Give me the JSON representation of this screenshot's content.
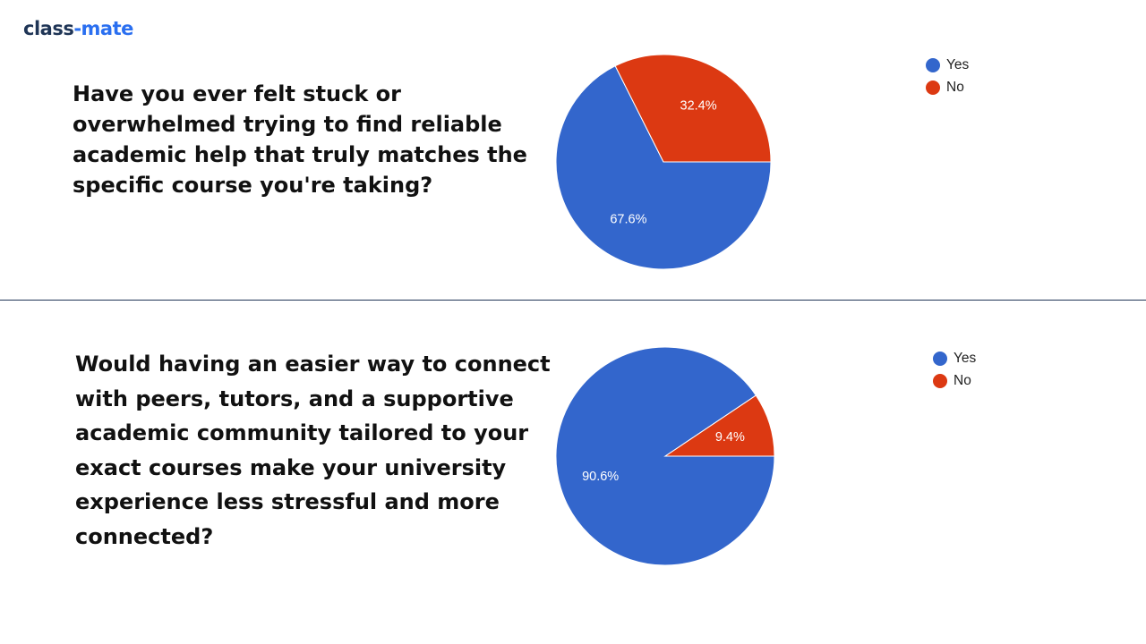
{
  "brand": {
    "name_part_a": "class",
    "name_sep": "-",
    "name_part_b": "mate"
  },
  "colors": {
    "yes": "#3366cc",
    "no": "#dc3912",
    "divider": "#1f3556",
    "brand_dark": "#1f3556",
    "brand_blue": "#2a6ff0"
  },
  "questions": [
    {
      "text": "Have you ever felt stuck or overwhelmed trying to find reliable academic help that truly matches the specific course you're taking?"
    },
    {
      "text": "Would having an easier way to connect with peers, tutors, and a supportive academic community tailored to your exact courses make your university experience less stressful and more connected?"
    }
  ],
  "chart_data": [
    {
      "type": "pie",
      "title": "",
      "categories": [
        "Yes",
        "No"
      ],
      "values": [
        67.6,
        32.4
      ],
      "labels": [
        "67.6%",
        "32.4%"
      ],
      "colors": [
        "#3366cc",
        "#dc3912"
      ],
      "legend": {
        "position": "right",
        "entries": [
          "Yes",
          "No"
        ]
      }
    },
    {
      "type": "pie",
      "title": "",
      "categories": [
        "Yes",
        "No"
      ],
      "values": [
        90.6,
        9.4
      ],
      "labels": [
        "90.6%",
        "9.4%"
      ],
      "colors": [
        "#3366cc",
        "#dc3912"
      ],
      "legend": {
        "position": "right",
        "entries": [
          "Yes",
          "No"
        ]
      }
    }
  ]
}
